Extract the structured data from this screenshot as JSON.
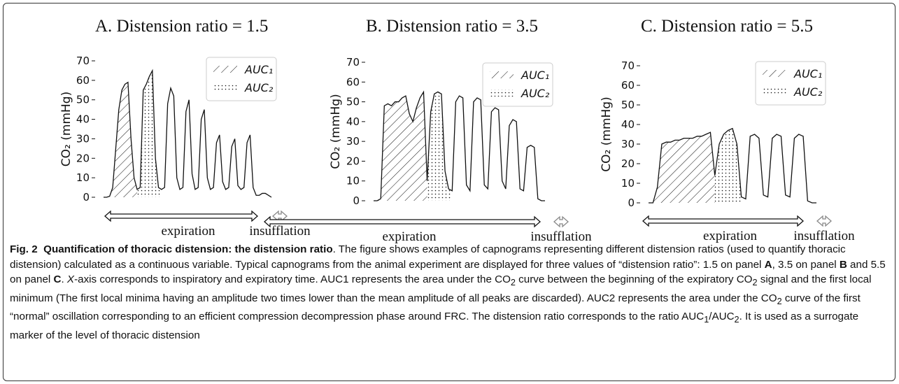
{
  "chart_data": [
    {
      "type": "line",
      "title": "A. Distension ratio = 1.5",
      "ylabel": "CO₂ (mmHg)",
      "ylim": [
        0,
        70
      ],
      "yticks": [
        0,
        10,
        20,
        30,
        40,
        50,
        60,
        70
      ],
      "legend": [
        "AUC₁",
        "AUC₂"
      ],
      "legend_position": "top-right",
      "phase_labels": [
        "expiration",
        "insufflation"
      ],
      "series": [
        {
          "y": [
            0,
            0,
            0.5,
            5,
            25,
            45,
            55,
            58,
            59,
            30,
            10,
            4,
            5,
            55,
            58,
            62,
            65,
            20,
            5,
            4,
            5,
            48,
            56,
            52,
            10,
            4,
            5,
            44,
            50,
            12,
            4,
            5,
            40,
            45,
            10,
            4,
            5,
            28,
            32,
            8,
            4,
            5,
            26,
            30,
            6,
            4,
            5,
            28,
            32,
            5,
            1,
            1,
            2,
            2,
            1,
            0
          ]
        }
      ]
    },
    {
      "type": "line",
      "title": "B. Distension ratio = 3.5",
      "ylabel": "CO₂ (mmHg)",
      "ylim": [
        0,
        70
      ],
      "yticks": [
        0,
        10,
        20,
        30,
        40,
        50,
        60,
        70
      ],
      "legend": [
        "AUC₁",
        "AUC₂"
      ],
      "legend_position": "top-right",
      "phase_labels": [
        "expiration",
        "insufflation"
      ],
      "series": [
        {
          "y": [
            0,
            0,
            1,
            48,
            49,
            48,
            50,
            50,
            52,
            53,
            44,
            40,
            47,
            52,
            55,
            10,
            45,
            54,
            55,
            54,
            15,
            6,
            5,
            50,
            53,
            52,
            8,
            5,
            50,
            52,
            51,
            8,
            6,
            45,
            47,
            46,
            10,
            6,
            38,
            41,
            40,
            6,
            5,
            27,
            28,
            27,
            1,
            0,
            0
          ]
        }
      ]
    },
    {
      "type": "line",
      "title": "C. Distension ratio = 5.5",
      "ylabel": "CO₂ (mmHg)",
      "ylim": [
        0,
        70
      ],
      "yticks": [
        0,
        10,
        20,
        30,
        40,
        50,
        60,
        70
      ],
      "legend": [
        "AUC₁",
        "AUC₂"
      ],
      "legend_position": "top-right",
      "phase_labels": [
        "expiration",
        "insufflation"
      ],
      "series": [
        {
          "y": [
            0,
            0,
            8,
            30,
            31,
            31,
            32,
            32,
            33,
            33,
            33,
            34,
            34,
            35,
            36,
            14,
            30,
            35,
            37,
            38,
            30,
            3,
            2,
            34,
            35,
            33,
            4,
            3,
            33,
            35,
            34,
            4,
            3,
            33,
            35,
            34,
            1,
            0,
            0
          ]
        }
      ]
    }
  ],
  "caption": {
    "fig_label": "Fig. 2",
    "title": "Quantification of thoracic distension: the distension ratio",
    "p1": ". The figure shows examples of capnograms representing different distension ratios (used to quantify thoracic distension) calculated as a continuous variable. Typical capnograms from the animal experiment are displayed for three values of “distension ratio”: 1.5 on panel ",
    "panel_a": "A",
    "p2": ", 3.5 on panel ",
    "panel_b": "B",
    "p3": " and 5.5 on panel ",
    "panel_c": "C",
    "p4": ". ",
    "x_axis_italic": "X",
    "p5": "-axis corresponds to inspiratory and expiratory time. AUC1 represents the area under the CO",
    "sub2a": "2",
    "p6": " curve between the beginning of the expiratory CO",
    "sub2b": "2",
    "p7": " signal and the first local minimum (The first local minima having an amplitude two times lower than the mean amplitude of all peaks are discarded). AUC2 represents the area under the CO",
    "sub2c": "2",
    "p8": " curve of the first “normal” oscillation corresponding to an efficient compression decompression phase around FRC. The distension ratio corresponds to the ratio AUC",
    "sub1": "1",
    "p9": "/AUC",
    "sub2d": "2",
    "p10": ". It is used as a surrogate marker of the level of thoracic distension"
  }
}
